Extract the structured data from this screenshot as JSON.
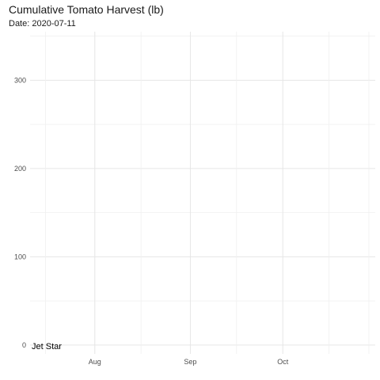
{
  "chart_data": {
    "type": "line",
    "title": "Cumulative Tomato Harvest (lb)",
    "subtitle": "Date: 2020-07-11",
    "xlabel": "",
    "ylabel": "",
    "x_axis": {
      "type": "date",
      "range": [
        "2020-07-11",
        "2020-10-31"
      ],
      "tick_labels": [
        {
          "date": "2020-08-01",
          "label": "Aug"
        },
        {
          "date": "2020-09-01",
          "label": "Sep"
        },
        {
          "date": "2020-10-01",
          "label": "Oct"
        }
      ]
    },
    "ylim": [
      -10,
      355
    ],
    "y_ticks": [
      0,
      100,
      200,
      300
    ],
    "grid": true,
    "series": [
      {
        "name": "Jet Star",
        "points": [
          {
            "x": "2020-07-11",
            "y": 0
          }
        ]
      }
    ]
  }
}
